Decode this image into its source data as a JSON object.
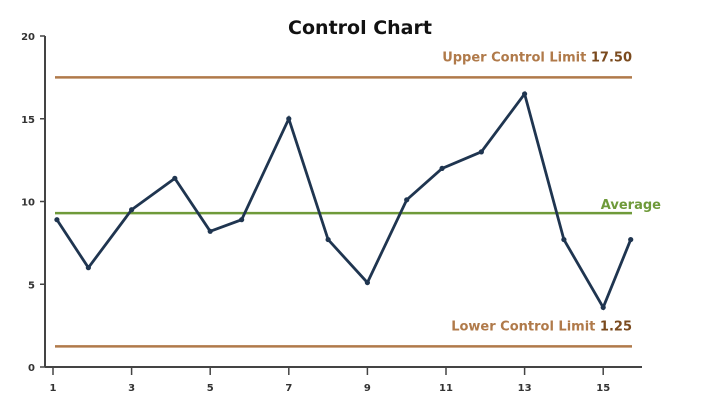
{
  "chart_data": {
    "type": "line",
    "title": "Control Chart",
    "xlabel": "",
    "ylabel": "",
    "xlim": [
      1,
      16
    ],
    "ylim": [
      0,
      20
    ],
    "grid": false,
    "x_ticks": [
      1,
      3,
      5,
      7,
      9,
      11,
      13,
      15
    ],
    "y_ticks": [
      0,
      5,
      10,
      15,
      20
    ],
    "series": [
      {
        "x": [
          1.1,
          1.9,
          3.0,
          4.1,
          5.0,
          5.8,
          7.0,
          8.0,
          9.0,
          10.0,
          10.9,
          11.9,
          13.0,
          14.0,
          15.0,
          15.7
        ],
        "values": [
          8.9,
          6.0,
          9.5,
          11.4,
          8.2,
          8.9,
          15.0,
          7.7,
          5.1,
          10.1,
          12.0,
          13.0,
          16.5,
          7.7,
          3.6,
          7.7
        ],
        "color": "#1f3550"
      }
    ],
    "reference_lines": [
      {
        "label": "Upper Control Limit",
        "value_label": "17.50",
        "value": 17.5,
        "color": "#b07a4a"
      },
      {
        "label": "Average",
        "value_label": "",
        "value": 9.3,
        "color": "#6f9a3a"
      },
      {
        "label": "Lower Control Limit",
        "value_label": "1.25",
        "value": 1.25,
        "color": "#b07a4a"
      }
    ]
  }
}
